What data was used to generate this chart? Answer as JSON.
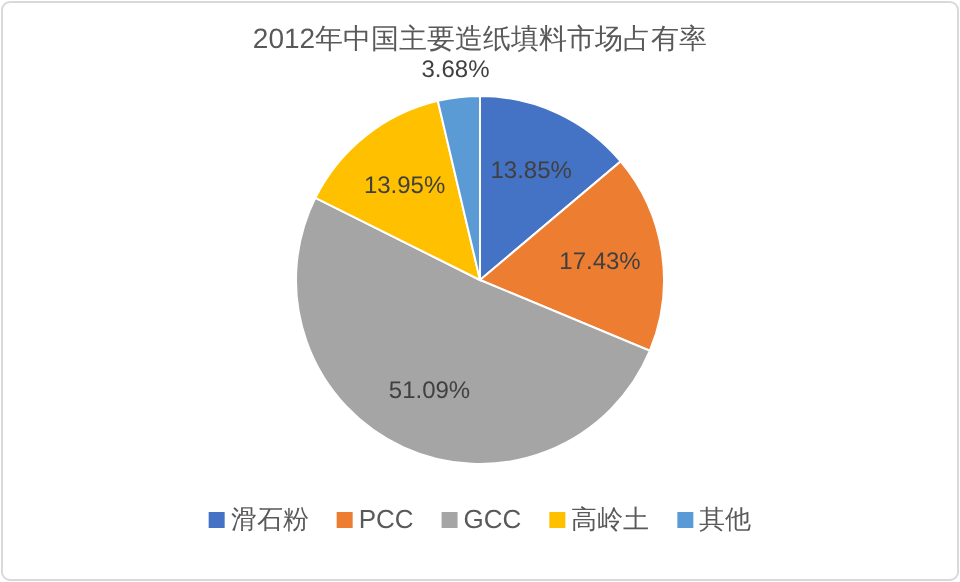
{
  "chart_data": {
    "type": "pie",
    "title": "2012年中国主要造纸填料市场占有率",
    "categories": [
      "滑石粉",
      "PCC",
      "GCC",
      "高岭土",
      "其他"
    ],
    "values": [
      13.85,
      17.43,
      51.09,
      13.95,
      3.68
    ],
    "colors": [
      "#4472c4",
      "#ed7d31",
      "#a5a5a5",
      "#ffc000",
      "#5b9bd5"
    ],
    "value_labels": [
      "13.85%",
      "17.43%",
      "51.09%",
      "13.95%",
      "3.68%"
    ],
    "legend": "bottom"
  }
}
